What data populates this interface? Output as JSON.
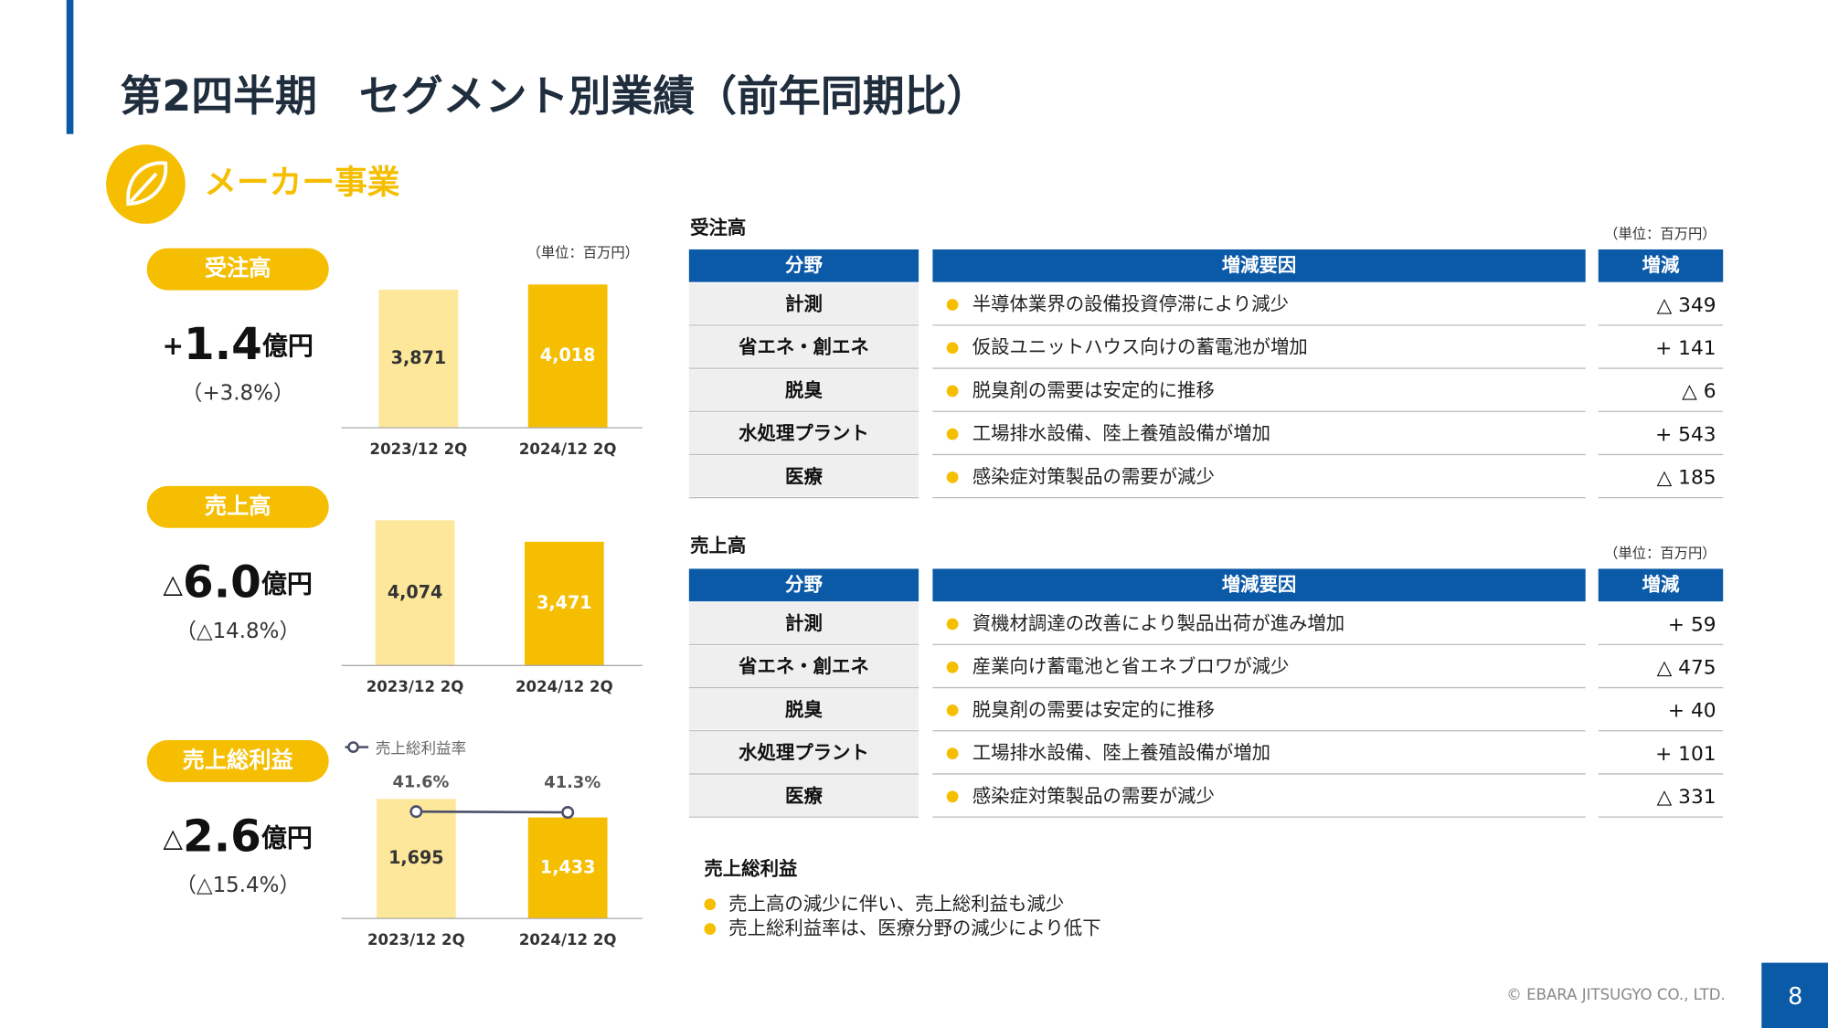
{
  "title": "第2四半期　セグメント別業績（前年同期比）",
  "section": "メーカー事業",
  "summaries": [
    {
      "label": "受注高",
      "sign": "+",
      "amount": "1.4",
      "unit": "億円",
      "pct": "（+3.8%）"
    },
    {
      "label": "売上高",
      "sign": "△",
      "amount": "6.0",
      "unit": "億円",
      "pct": "（△14.8%）"
    },
    {
      "label": "売上総利益",
      "sign": "△",
      "amount": "2.6",
      "unit": "億円",
      "pct": "（△15.4%）"
    }
  ],
  "charts": [
    {
      "type": "bar",
      "unit": "（単位：百万円）",
      "categories": [
        "2023/12 2Q",
        "2024/12 2Q"
      ],
      "values": [
        3871,
        4018
      ],
      "value_labels": [
        "3,871",
        "4,018"
      ],
      "colors": [
        "#fde79a",
        "#f6be00"
      ],
      "ylim": [
        0,
        4250
      ]
    },
    {
      "type": "bar",
      "categories": [
        "2023/12 2Q",
        "2024/12 2Q"
      ],
      "values": [
        4074,
        3471
      ],
      "value_labels": [
        "4,074",
        "3,471"
      ],
      "colors": [
        "#fde79a",
        "#f6be00"
      ],
      "ylim": [
        0,
        4250
      ]
    },
    {
      "type": "bar",
      "categories": [
        "2023/12 2Q",
        "2024/12 2Q"
      ],
      "values": [
        1695,
        1433
      ],
      "value_labels": [
        "1,695",
        "1,433"
      ],
      "colors": [
        "#fde79a",
        "#f6be00"
      ],
      "ylim": [
        0,
        2150
      ],
      "line": {
        "name": "売上総利益率",
        "color": "#4a4f6a",
        "values": [
          41.6,
          41.3
        ],
        "value_labels": [
          "41.6%",
          "41.3%"
        ],
        "y2lim": [
          0,
          59
        ]
      }
    }
  ],
  "tables": [
    {
      "title": "受注高",
      "unit": "（単位：百万円）",
      "header": [
        "分野",
        "増減要因",
        "増減"
      ],
      "rows": [
        [
          "計測",
          "半導体業界の設備投資停滞により減少",
          "△ 349"
        ],
        [
          "省エネ・創エネ",
          "仮設ユニットハウス向けの蓄電池が増加",
          "+ 141"
        ],
        [
          "脱臭",
          "脱臭剤の需要は安定的に推移",
          "△ 6"
        ],
        [
          "水処理プラント",
          "工場排水設備、陸上養殖設備が増加",
          "+ 543"
        ],
        [
          "医療",
          "感染症対策製品の需要が減少",
          "△ 185"
        ]
      ]
    },
    {
      "title": "売上高",
      "unit": "（単位：百万円）",
      "header": [
        "分野",
        "増減要因",
        "増減"
      ],
      "rows": [
        [
          "計測",
          "資機材調達の改善により製品出荷が進み増加",
          "+ 59"
        ],
        [
          "省エネ・創エネ",
          "産業向け蓄電池と省エネブロワが減少",
          "△ 475"
        ],
        [
          "脱臭",
          "脱臭剤の需要は安定的に推移",
          "+ 40"
        ],
        [
          "水処理プラント",
          "工場排水設備、陸上養殖設備が増加",
          "+ 101"
        ],
        [
          "医療",
          "感染症対策製品の需要が減少",
          "△ 331"
        ]
      ]
    }
  ],
  "gross_profit": {
    "title": "売上総利益",
    "notes": [
      "売上高の減少に伴い、売上総利益も減少",
      "売上総利益率は、医療分野の減少により低下"
    ]
  },
  "footer": {
    "copyright": "© EBARA JITSUGYO CO., LTD.",
    "page": "8"
  }
}
